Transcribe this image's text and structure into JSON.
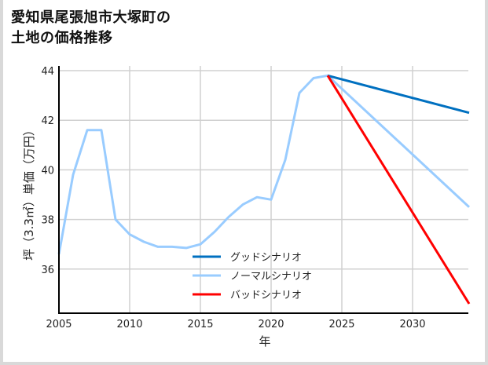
{
  "title_line1": "愛知県尾張旭市大塚町の",
  "title_line2": "土地の価格推移",
  "chart_data": {
    "type": "line",
    "title": "愛知県尾張旭市大塚町の土地の価格推移",
    "xlabel": "年",
    "ylabel": "坪（3.3㎡）単価（万円）",
    "xlim": [
      2005,
      2034
    ],
    "ylim": [
      34.3,
      44.2
    ],
    "x_ticks": [
      2005,
      2010,
      2015,
      2020,
      2025,
      2030
    ],
    "y_ticks": [
      36,
      38,
      40,
      42,
      44
    ],
    "grid": true,
    "legend_position": "lower center",
    "series": [
      {
        "name": "グッドシナリオ",
        "color": "#0070c0",
        "x": [
          2024,
          2034
        ],
        "values": [
          43.8,
          42.3
        ]
      },
      {
        "name": "ノーマルシナリオ",
        "color": "#99ccff",
        "x": [
          2005,
          2006,
          2007,
          2008,
          2009,
          2010,
          2011,
          2012,
          2013,
          2014,
          2015,
          2016,
          2017,
          2018,
          2019,
          2020,
          2021,
          2022,
          2023,
          2024,
          2034
        ],
        "values": [
          36.6,
          39.8,
          41.6,
          41.6,
          38.0,
          37.4,
          37.1,
          36.9,
          36.9,
          36.85,
          37.0,
          37.5,
          38.1,
          38.6,
          38.9,
          38.8,
          40.4,
          43.1,
          43.7,
          43.8,
          38.5
        ]
      },
      {
        "name": "バッドシナリオ",
        "color": "#ff0000",
        "x": [
          2024,
          2034
        ],
        "values": [
          43.8,
          34.6
        ]
      }
    ]
  }
}
